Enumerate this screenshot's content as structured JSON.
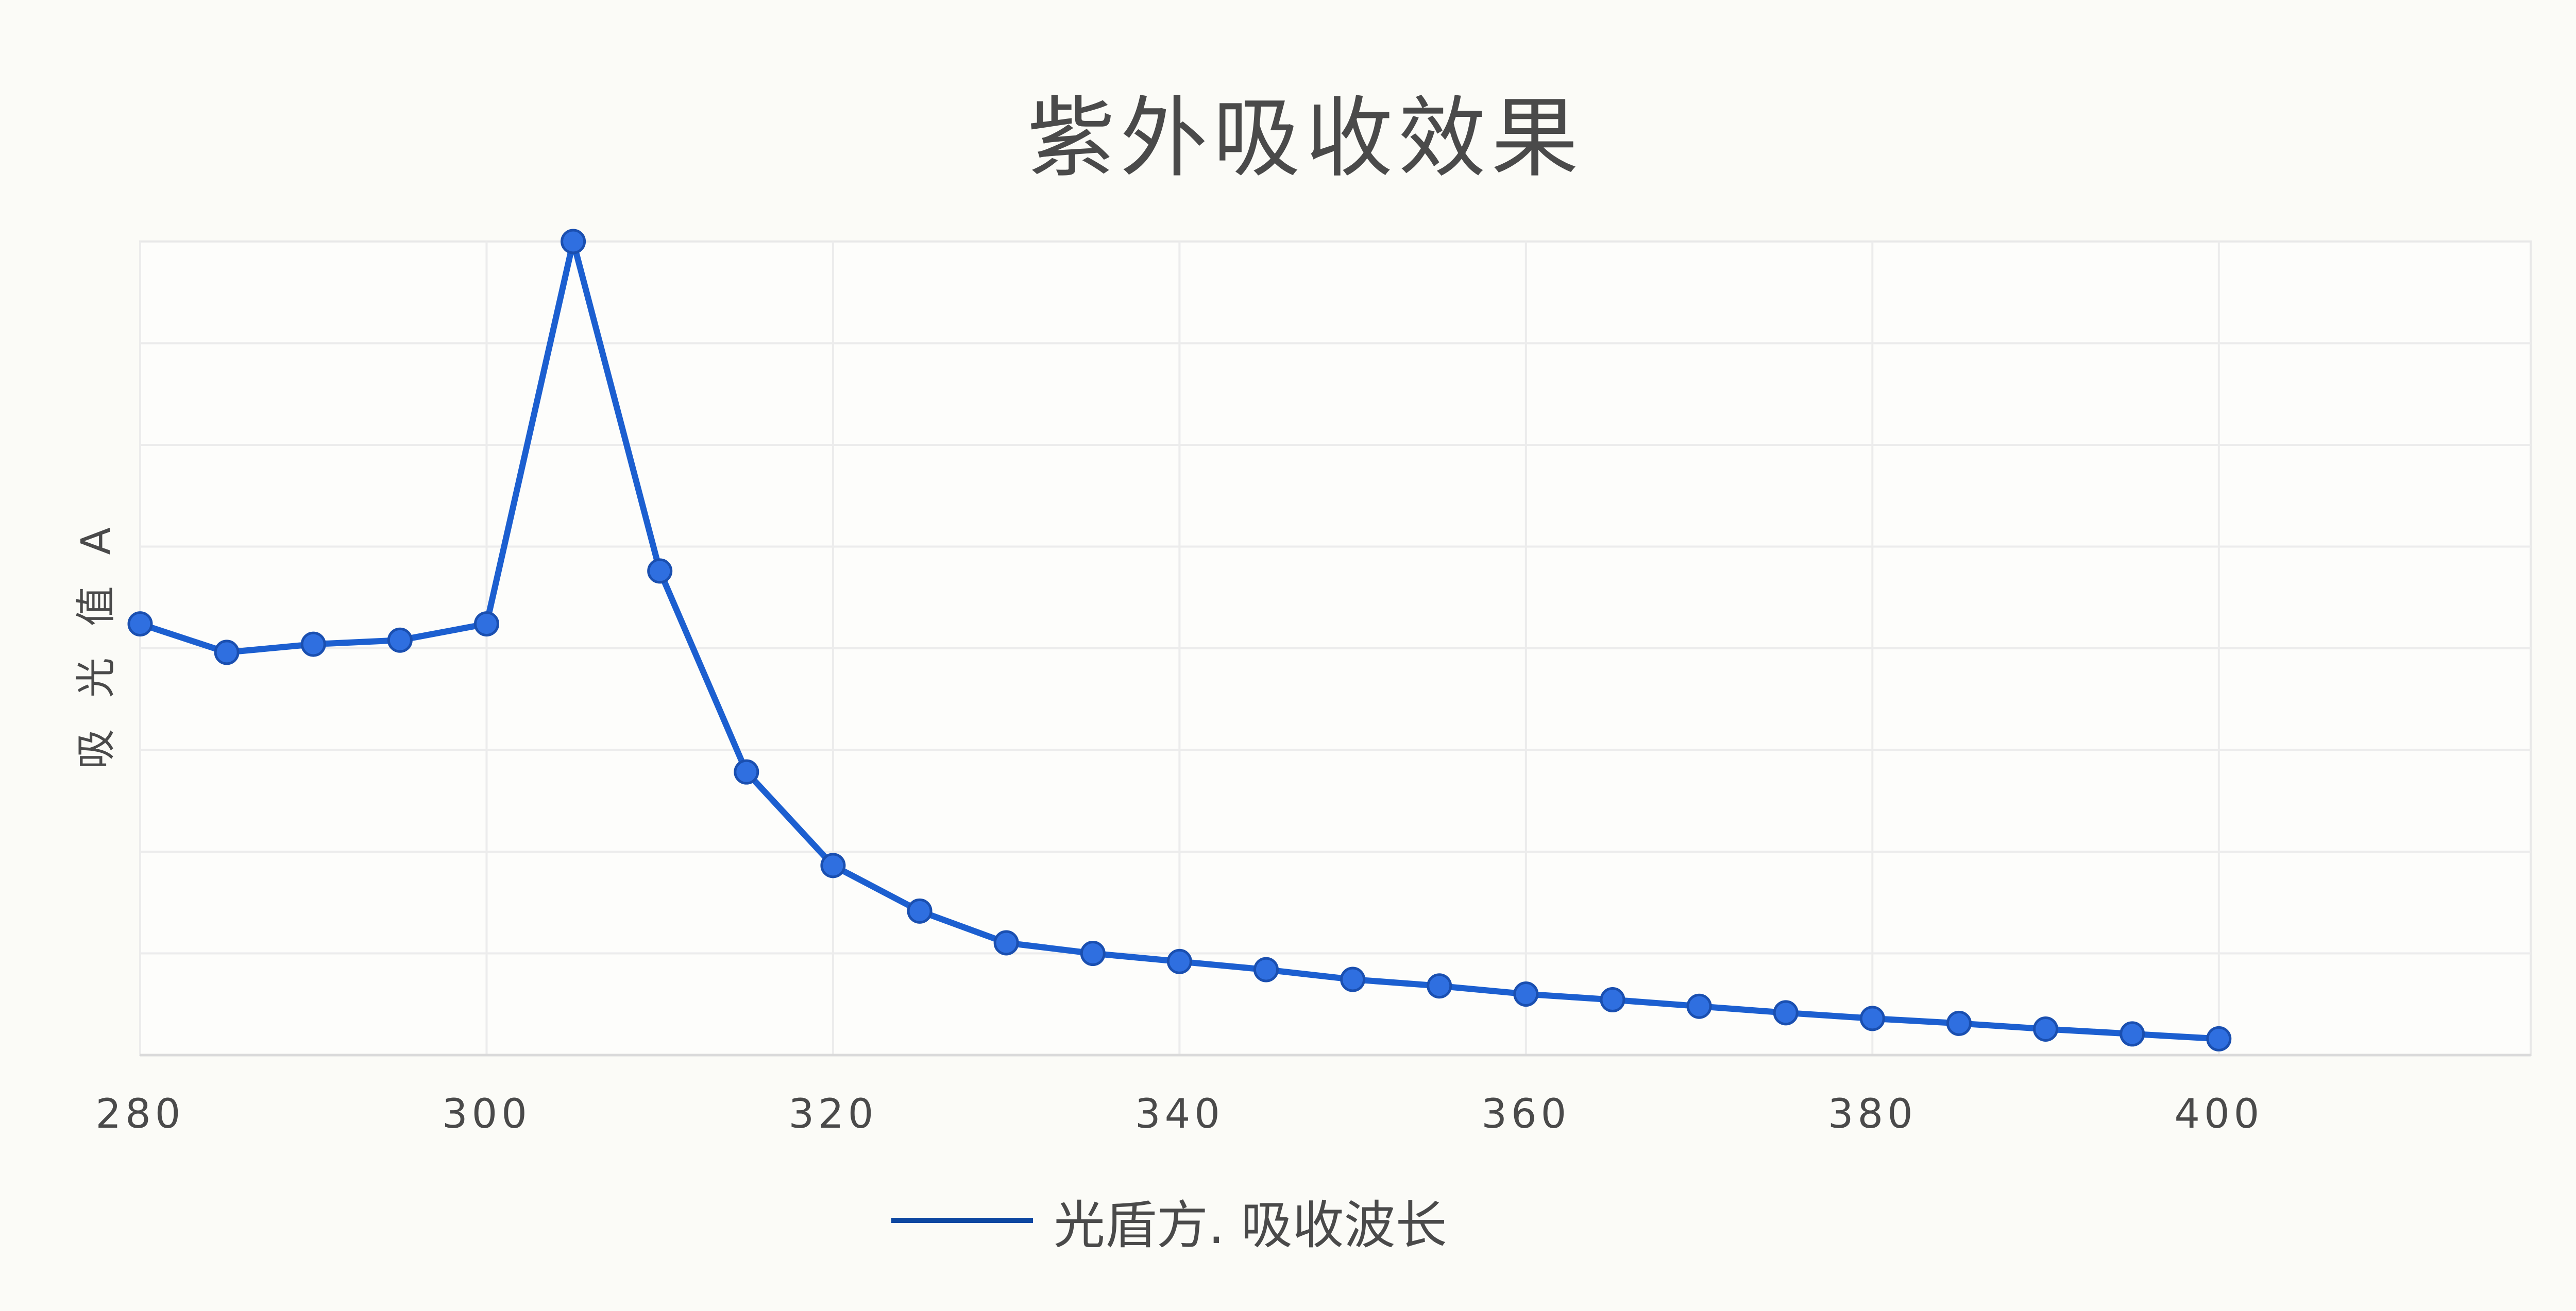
{
  "chart_data": {
    "type": "line",
    "title": "紫外吸收效果",
    "ylabel": "吸 光 值 A",
    "xlabel": "",
    "xlim": [
      280,
      418
    ],
    "ylim": [
      0,
      1
    ],
    "x_ticks": [
      "280",
      "300",
      "320",
      "340",
      "360",
      "380",
      "400"
    ],
    "y_gridlines": 8,
    "grid": true,
    "legend_placement": "bottom-center",
    "series": [
      {
        "name": "光盾方. 吸收波长",
        "color": "#1c5fd0",
        "points": [
          [
            280,
            0.53
          ],
          [
            285,
            0.495
          ],
          [
            290,
            0.505
          ],
          [
            295,
            0.51
          ],
          [
            300,
            0.53
          ],
          [
            305,
            1.0
          ],
          [
            310,
            0.595
          ],
          [
            315,
            0.348
          ],
          [
            320,
            0.233
          ],
          [
            325,
            0.177
          ],
          [
            330,
            0.138
          ],
          [
            335,
            0.125
          ],
          [
            340,
            0.115
          ],
          [
            345,
            0.105
          ],
          [
            350,
            0.093
          ],
          [
            355,
            0.085
          ],
          [
            360,
            0.075
          ],
          [
            365,
            0.068
          ],
          [
            370,
            0.06
          ],
          [
            375,
            0.052
          ],
          [
            380,
            0.045
          ],
          [
            385,
            0.039
          ],
          [
            390,
            0.032
          ],
          [
            395,
            0.026
          ],
          [
            400,
            0.02
          ]
        ]
      }
    ]
  }
}
